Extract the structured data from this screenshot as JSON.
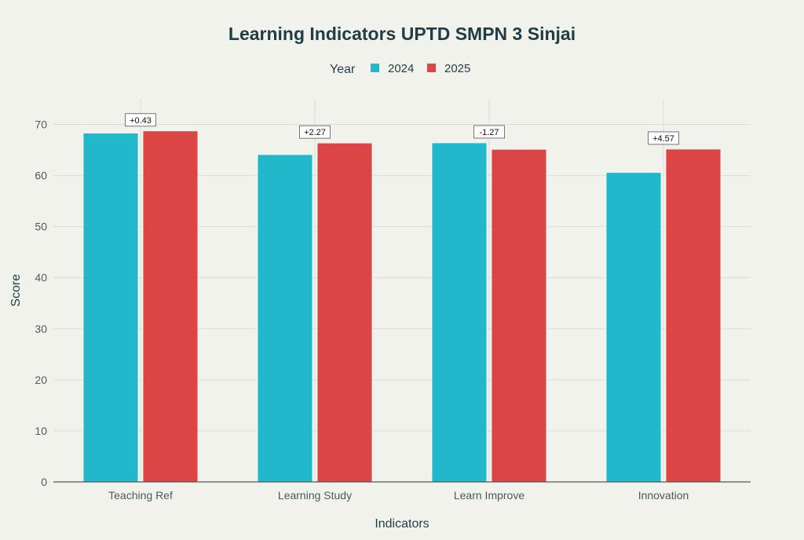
{
  "chart_data": {
    "type": "bar",
    "title": "Learning Indicators UPTD SMPN 3 Sinjai",
    "xlabel": "Indicators",
    "ylabel": "Score",
    "legend_title": "Year",
    "legend_position": "top-center",
    "grid": true,
    "ylim": [
      0,
      75
    ],
    "yticks": [
      0,
      10,
      20,
      30,
      40,
      50,
      60,
      70
    ],
    "categories": [
      "Teaching Ref",
      "Learning Study",
      "Learn Improve",
      "Innovation"
    ],
    "series": [
      {
        "name": "2024",
        "color": "#21b8cb",
        "values": [
          68.3,
          64.1,
          66.4,
          60.6
        ]
      },
      {
        "name": "2025",
        "color": "#db4545",
        "values": [
          68.73,
          66.37,
          65.13,
          65.17
        ]
      }
    ],
    "annotations": [
      "+0.43",
      "+2.27",
      "-1.27",
      "+4.57"
    ]
  }
}
